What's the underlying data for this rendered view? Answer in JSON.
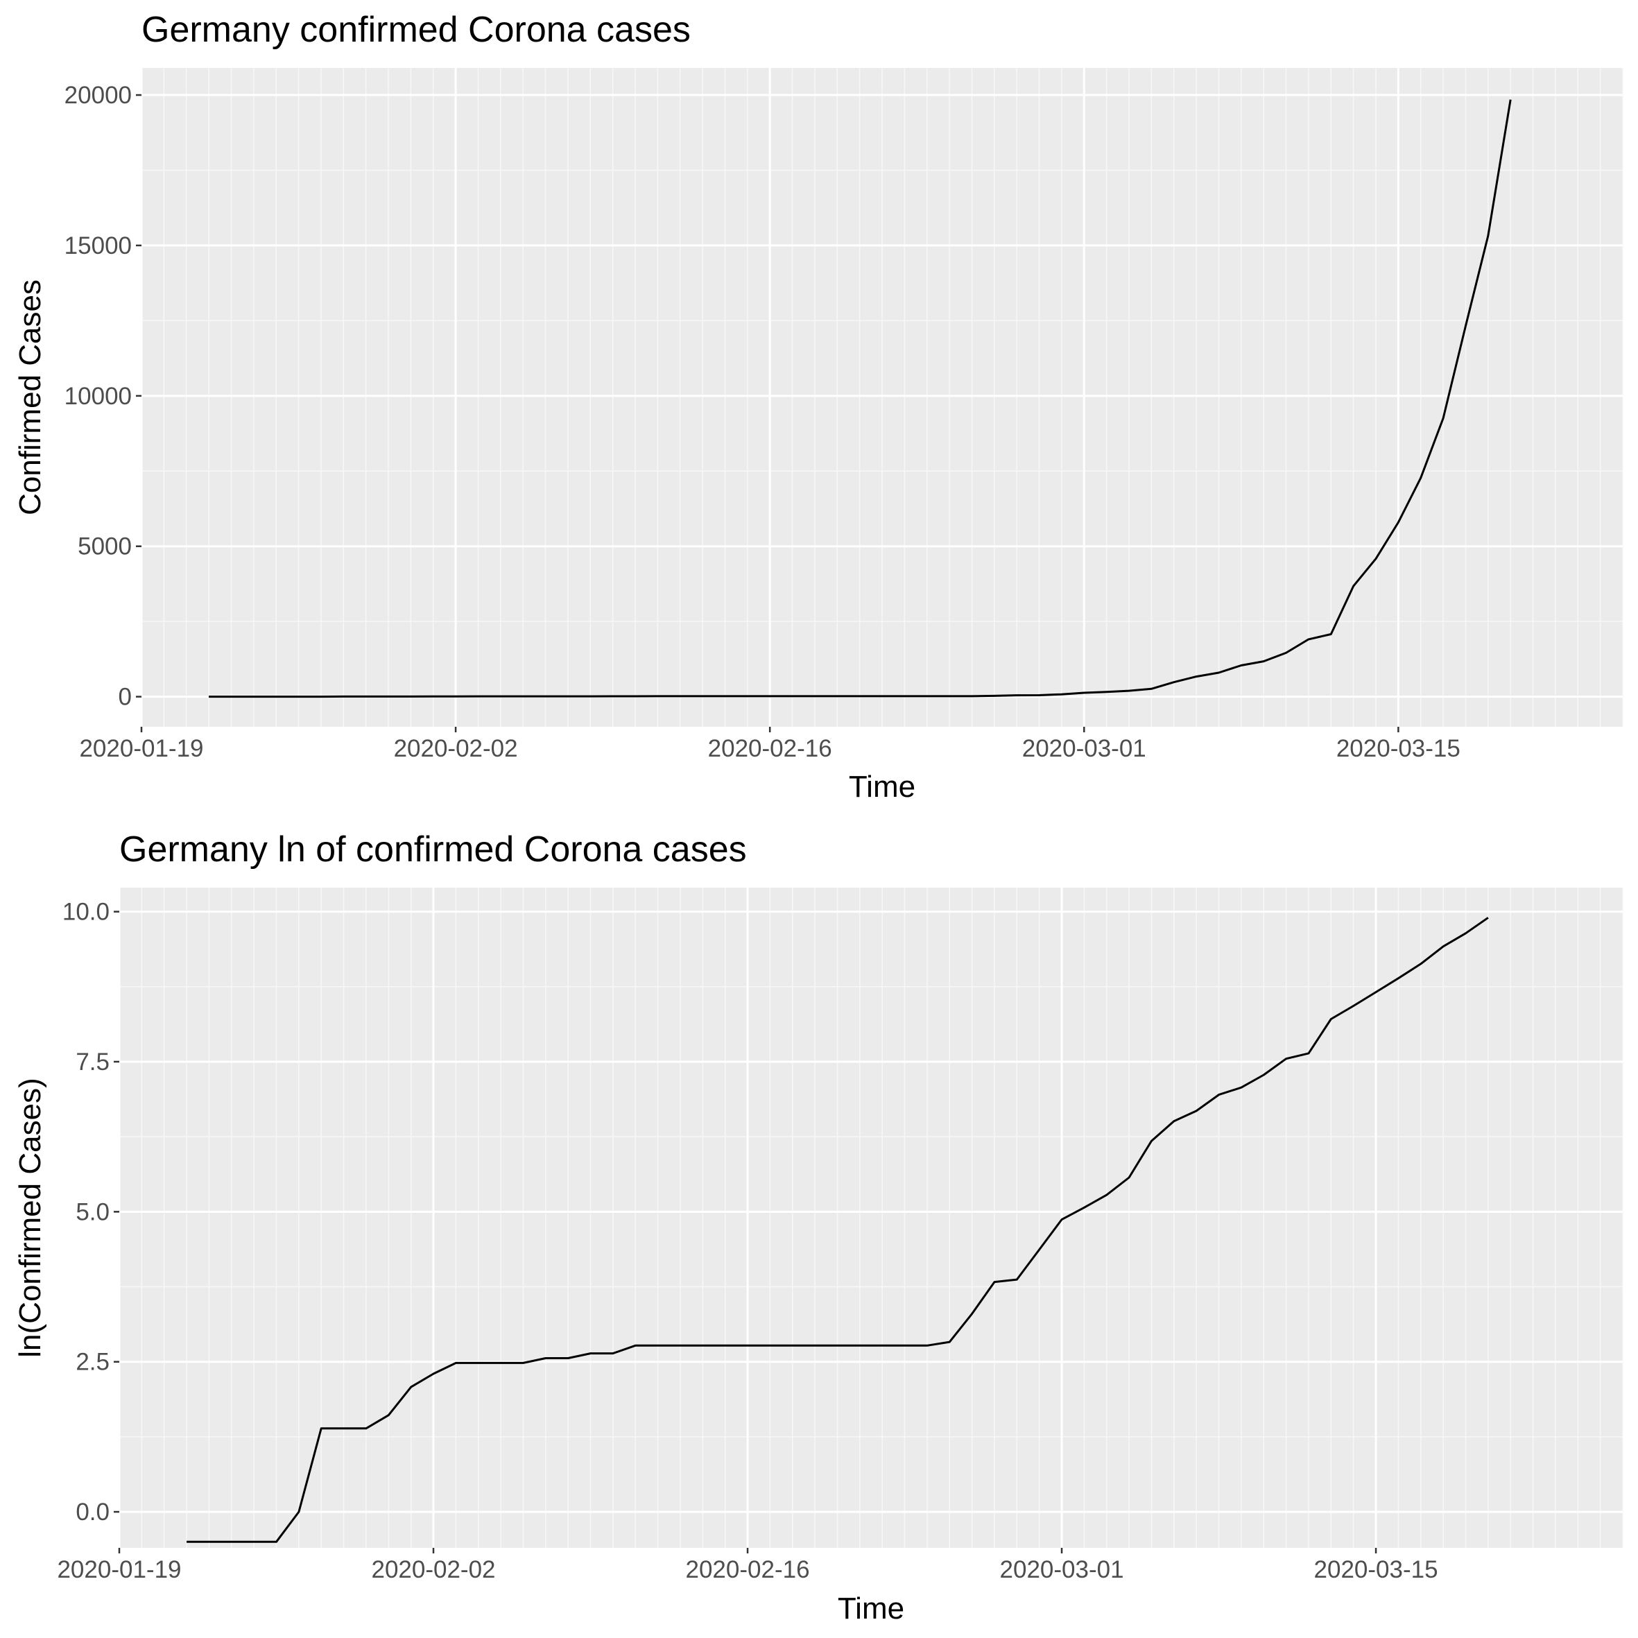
{
  "chart_data": [
    {
      "type": "line",
      "title": "Germany confirmed Corona cases",
      "xlabel": "Time",
      "ylabel": "Confirmed Cases",
      "x_axis_type": "date",
      "xlim": [
        "2020-01-19",
        "2020-03-25"
      ],
      "ylim": [
        -1000,
        20900
      ],
      "x_ticks": [
        "2020-01-19",
        "2020-02-02",
        "2020-02-16",
        "2020-03-01",
        "2020-03-15"
      ],
      "y_ticks": [
        0,
        5000,
        10000,
        15000,
        20000
      ],
      "y_tick_labels": [
        "0",
        "5000",
        "10000",
        "15000",
        "20000"
      ],
      "grid": true,
      "line_color": "#000000",
      "panel_background": "#ebebeb",
      "series": [
        {
          "x": [
            "2020-01-22",
            "2020-01-23",
            "2020-01-24",
            "2020-01-25",
            "2020-01-26",
            "2020-01-27",
            "2020-01-28",
            "2020-01-29",
            "2020-01-30",
            "2020-01-31",
            "2020-02-01",
            "2020-02-02",
            "2020-02-03",
            "2020-02-04",
            "2020-02-05",
            "2020-02-06",
            "2020-02-07",
            "2020-02-08",
            "2020-02-09",
            "2020-02-10",
            "2020-02-11",
            "2020-02-12",
            "2020-02-13",
            "2020-02-14",
            "2020-02-15",
            "2020-02-16",
            "2020-02-17",
            "2020-02-18",
            "2020-02-19",
            "2020-02-20",
            "2020-02-21",
            "2020-02-22",
            "2020-02-23",
            "2020-02-24",
            "2020-02-25",
            "2020-02-26",
            "2020-02-27",
            "2020-02-28",
            "2020-02-29",
            "2020-03-01",
            "2020-03-02",
            "2020-03-03",
            "2020-03-04",
            "2020-03-05",
            "2020-03-06",
            "2020-03-07",
            "2020-03-08",
            "2020-03-09",
            "2020-03-10",
            "2020-03-11",
            "2020-03-12",
            "2020-03-13",
            "2020-03-14",
            "2020-03-15",
            "2020-03-16",
            "2020-03-17",
            "2020-03-18",
            "2020-03-19",
            "2020-03-20"
          ],
          "values": [
            0,
            0,
            0,
            0,
            0,
            1,
            4,
            4,
            4,
            5,
            8,
            10,
            12,
            12,
            12,
            12,
            13,
            13,
            14,
            14,
            16,
            16,
            16,
            16,
            16,
            16,
            16,
            16,
            16,
            16,
            16,
            16,
            16,
            16,
            17,
            27,
            46,
            48,
            79,
            130,
            159,
            196,
            262,
            482,
            670,
            799,
            1040,
            1176,
            1457,
            1908,
            2078,
            3675,
            4585,
            5795,
            7272,
            9257,
            12327,
            15320,
            19848
          ]
        }
      ]
    },
    {
      "type": "line",
      "title": "Germany ln of confirmed Corona cases",
      "xlabel": "Time",
      "ylabel": "ln(Confirmed Cases)",
      "x_axis_type": "date",
      "xlim": [
        "2020-01-19",
        "2020-03-26"
      ],
      "ylim": [
        -0.6,
        10.4
      ],
      "x_ticks": [
        "2020-01-19",
        "2020-02-02",
        "2020-02-16",
        "2020-03-01",
        "2020-03-15"
      ],
      "y_ticks": [
        0,
        2.5,
        5,
        7.5,
        10
      ],
      "y_tick_labels": [
        "0.0",
        "2.5",
        "5.0",
        "7.5",
        "10.0"
      ],
      "grid": true,
      "line_color": "#000000",
      "panel_background": "#ebebeb",
      "series": [
        {
          "x": [
            "2020-01-22",
            "2020-01-23",
            "2020-01-24",
            "2020-01-25",
            "2020-01-26",
            "2020-01-27",
            "2020-01-28",
            "2020-01-29",
            "2020-01-30",
            "2020-01-31",
            "2020-02-01",
            "2020-02-02",
            "2020-02-03",
            "2020-02-04",
            "2020-02-05",
            "2020-02-06",
            "2020-02-07",
            "2020-02-08",
            "2020-02-09",
            "2020-02-10",
            "2020-02-11",
            "2020-02-12",
            "2020-02-13",
            "2020-02-14",
            "2020-02-15",
            "2020-02-16",
            "2020-02-17",
            "2020-02-18",
            "2020-02-19",
            "2020-02-20",
            "2020-02-21",
            "2020-02-22",
            "2020-02-23",
            "2020-02-24",
            "2020-02-25",
            "2020-02-26",
            "2020-02-27",
            "2020-02-28",
            "2020-02-29",
            "2020-03-01",
            "2020-03-02",
            "2020-03-03",
            "2020-03-04",
            "2020-03-05",
            "2020-03-06",
            "2020-03-07",
            "2020-03-08",
            "2020-03-09",
            "2020-03-10",
            "2020-03-11",
            "2020-03-12",
            "2020-03-13",
            "2020-03-14",
            "2020-03-15",
            "2020-03-16",
            "2020-03-17",
            "2020-03-18",
            "2020-03-19",
            "2020-03-20"
          ],
          "values": [
            -0.5,
            -0.5,
            -0.5,
            -0.5,
            -0.5,
            0,
            1.39,
            1.39,
            1.39,
            1.61,
            2.08,
            2.3,
            2.48,
            2.48,
            2.48,
            2.48,
            2.56,
            2.56,
            2.64,
            2.64,
            2.77,
            2.77,
            2.77,
            2.77,
            2.77,
            2.77,
            2.77,
            2.77,
            2.77,
            2.77,
            2.77,
            2.77,
            2.77,
            2.77,
            2.83,
            3.3,
            3.83,
            3.87,
            4.37,
            4.87,
            5.07,
            5.28,
            5.57,
            6.18,
            6.51,
            6.68,
            6.95,
            7.07,
            7.28,
            7.55,
            7.64,
            8.21,
            8.43,
            8.66,
            8.89,
            9.13,
            9.42,
            9.64,
            9.9
          ]
        }
      ]
    }
  ]
}
